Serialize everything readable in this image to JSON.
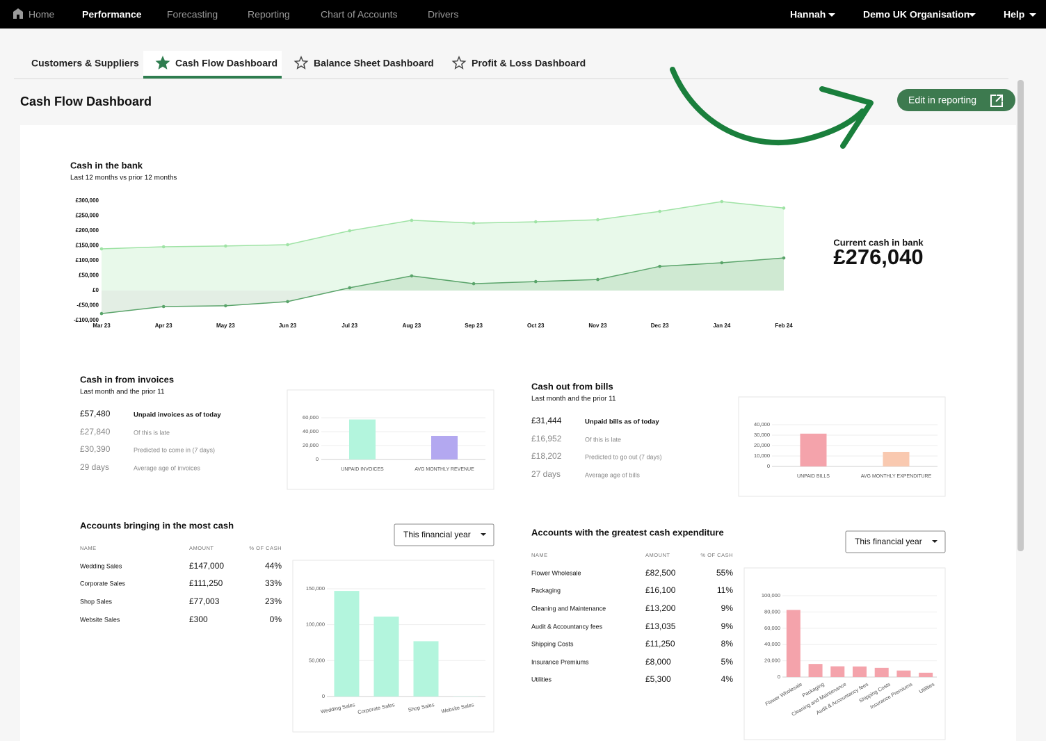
{
  "nav": {
    "items": [
      "Home",
      "Performance",
      "Forecasting",
      "Reporting",
      "Chart of Accounts",
      "Drivers"
    ],
    "user": "Hannah",
    "organisation": "Demo UK Organisation",
    "help": "Help"
  },
  "tabs": [
    "Customers & Suppliers",
    "Cash Flow Dashboard",
    "Balance Sheet Dashboard",
    "Profit & Loss Dashboard"
  ],
  "page_title": "Cash Flow Dashboard",
  "edit_button": "Edit in reporting",
  "current_cash": {
    "label": "Current cash in bank",
    "value": "£276,040"
  },
  "invoices": {
    "title": "Cash in from invoices",
    "subtitle": "Last month and the prior 11",
    "stats": [
      {
        "value": "£57,480",
        "label": "Unpaid invoices as of today"
      },
      {
        "value": "£27,840",
        "label": "Of this is late"
      },
      {
        "value": "£30,390",
        "label": "Predicted to come in (7 days)"
      },
      {
        "value": "29 days",
        "label": "Average age of invoices"
      }
    ]
  },
  "bills": {
    "title": "Cash out from bills",
    "subtitle": "Last month and the prior 11",
    "stats": [
      {
        "value": "£31,444",
        "label": "Unpaid bills as of today"
      },
      {
        "value": "£16,952",
        "label": "Of this is late"
      },
      {
        "value": "£18,202",
        "label": "Predicted to go out (7 days)"
      },
      {
        "value": "27 days",
        "label": "Average age of bills"
      }
    ]
  },
  "accounts_in": {
    "title": "Accounts bringing in the most cash",
    "dropdown": "This financial year",
    "columns": [
      "NAME",
      "AMOUNT",
      "% OF CASH"
    ],
    "rows": [
      [
        "Wedding Sales",
        "£147,000",
        "44%"
      ],
      [
        "Corporate Sales",
        "£111,250",
        "33%"
      ],
      [
        "Shop Sales",
        "£77,003",
        "23%"
      ],
      [
        "Website Sales",
        "£300",
        "0%"
      ]
    ]
  },
  "accounts_out": {
    "title": "Accounts with the greatest cash expenditure",
    "dropdown": "This financial year",
    "columns": [
      "NAME",
      "AMOUNT",
      "% OF CASH"
    ],
    "rows": [
      [
        "Flower Wholesale",
        "£82,500",
        "55%"
      ],
      [
        "Packaging",
        "£16,100",
        "11%"
      ],
      [
        "Cleaning and Maintenance",
        "£13,200",
        "9%"
      ],
      [
        "Audit & Accountancy fees",
        "£13,035",
        "9%"
      ],
      [
        "Shipping Costs",
        "£11,250",
        "8%"
      ],
      [
        "Insurance Premiums",
        "£8,000",
        "5%"
      ],
      [
        "Utilities",
        "£5,300",
        "4%"
      ]
    ]
  },
  "chart_data": [
    {
      "type": "line",
      "title": "Cash in the bank",
      "subtitle": "Last 12 months vs prior 12 months",
      "categories": [
        "Mar 23",
        "Apr 23",
        "May 23",
        "Jun 23",
        "Jul 23",
        "Aug 23",
        "Sep 23",
        "Oct 23",
        "Nov 23",
        "Dec 23",
        "Jan 24",
        "Feb 24"
      ],
      "series": [
        {
          "color": "#9fe3a5",
          "values": [
            139500,
            146500,
            149000,
            153500,
            200000,
            235000,
            225600,
            230000,
            237000,
            265000,
            297700,
            276000
          ]
        },
        {
          "color": "#5aa46a",
          "values": [
            -77000,
            -53500,
            -51000,
            -37000,
            9300,
            49000,
            23000,
            30000,
            37000,
            81000,
            93000,
            109000
          ]
        }
      ],
      "ylim": [
        -100000,
        300000
      ],
      "yticks": [
        {
          "value": -100000,
          "label": "-£100,000"
        },
        {
          "value": -50000,
          "label": "-£50,000"
        },
        {
          "value": 0,
          "label": "£0"
        },
        {
          "value": 50000,
          "label": "£50,000"
        },
        {
          "value": 100000,
          "label": "£100,000"
        },
        {
          "value": 150000,
          "label": "£150,000"
        },
        {
          "value": 200000,
          "label": "£200,000"
        },
        {
          "value": 250000,
          "label": "£250,000"
        },
        {
          "value": 300000,
          "label": "£300,000"
        }
      ]
    },
    {
      "type": "bar",
      "categories": [
        "UNPAID INVOICES",
        "AVG MONTHLY REVENUE"
      ],
      "values": [
        57480,
        34000
      ],
      "colors": [
        "#b3f5dd",
        "#b3a8f0"
      ],
      "ylim": [
        0,
        60000
      ],
      "yticks": [
        0,
        {
          "value": 20000,
          "label": "20,000"
        },
        {
          "value": 40000,
          "label": "40,000"
        },
        {
          "value": 60000,
          "label": "60,000"
        }
      ],
      "grid": true
    },
    {
      "type": "bar",
      "categories": [
        "UNPAID BILLS",
        "AVG MONTHLY EXPENDITURE"
      ],
      "values": [
        31444,
        14000
      ],
      "colors": [
        "#f4a3ab",
        "#f9c9b0"
      ],
      "ylim": [
        0,
        40000
      ],
      "yticks": [
        0,
        {
          "value": 10000,
          "label": "10,000"
        },
        {
          "value": 20000,
          "label": "20,000"
        },
        {
          "value": 30000,
          "label": "30,000"
        },
        {
          "value": 40000,
          "label": "40,000"
        }
      ],
      "grid": true
    },
    {
      "type": "bar",
      "categories": [
        "Wedding Sales",
        "Corporate Sales",
        "Shop Sales",
        "Website Sales"
      ],
      "values": [
        147000,
        111250,
        77003,
        300
      ],
      "color": "#b3f5dd",
      "ylim": [
        0,
        150000
      ],
      "yticks": [
        0,
        {
          "value": 50000,
          "label": "50,000"
        },
        {
          "value": 100000,
          "label": "100,000"
        },
        {
          "value": 150000,
          "label": "150,000"
        }
      ],
      "grid": true
    },
    {
      "type": "bar",
      "categories": [
        "Flower Wholesale",
        "Packaging",
        "Cleaning and Maintenance",
        "Audit & Accountancy fees",
        "Shipping Costs",
        "Insurance Premiums",
        "Utilities"
      ],
      "values": [
        82500,
        16100,
        13200,
        13035,
        11250,
        8000,
        5300
      ],
      "color": "#f4a3ab",
      "ylim": [
        0,
        100000
      ],
      "yticks": [
        0,
        {
          "value": 20000,
          "label": "20,000"
        },
        {
          "value": 40000,
          "label": "40,000"
        },
        {
          "value": 60000,
          "label": "60,000"
        },
        {
          "value": 80000,
          "label": "80,000"
        },
        {
          "value": 100000,
          "label": "100,000"
        }
      ],
      "grid": true
    }
  ]
}
